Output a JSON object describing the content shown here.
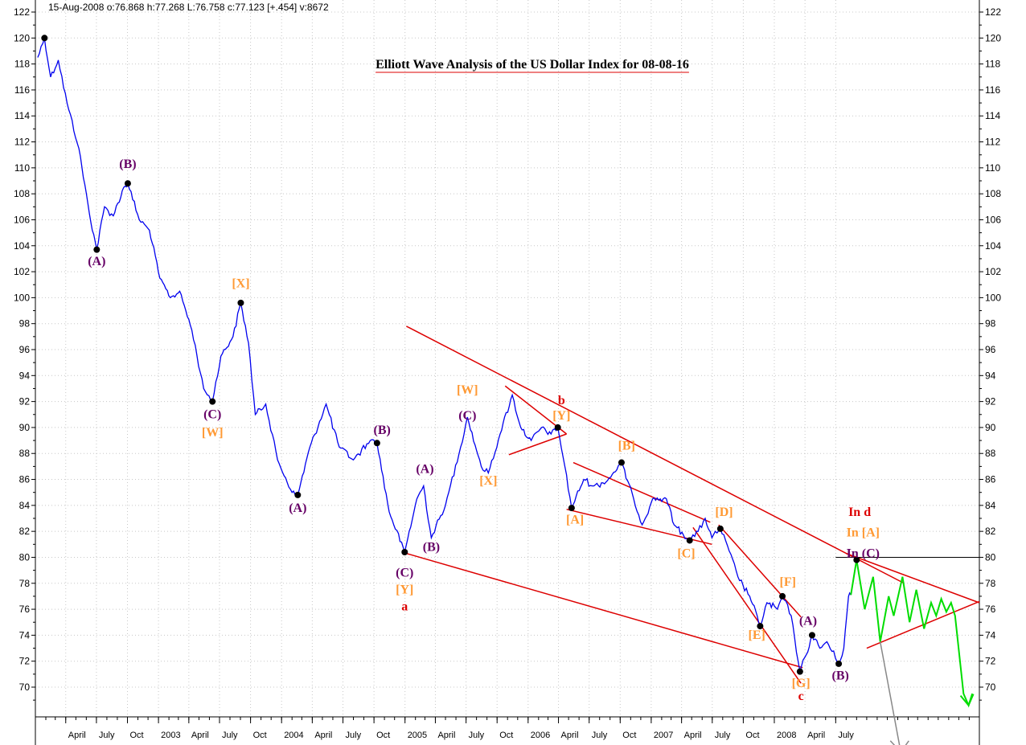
{
  "header": "15-Aug-2008  o:76.868 h:77.268 L:76.758 c:77.123 [+.454] v:8672",
  "colors": {
    "price": "#0000ee",
    "trendline": "#dd0000",
    "projection": "#00dd00",
    "alt_projection": "#888888",
    "purple_label": "#660066",
    "orange_label": "#ff9933",
    "red_label": "#dd0000",
    "grid": "#c8c8c8"
  },
  "chart_data": {
    "type": "line",
    "title": "Elliott Wave Analysis of the US Dollar Index for 08-08-16",
    "x_range": [
      "2002-01-01",
      "2009-08-31"
    ],
    "ylim": [
      68,
      122
    ],
    "y_ticks": [
      70,
      72,
      74,
      76,
      78,
      80,
      82,
      84,
      86,
      88,
      90,
      92,
      94,
      96,
      98,
      100,
      102,
      104,
      106,
      108,
      110,
      112,
      114,
      116,
      118,
      120,
      122
    ],
    "x_ticks": [
      {
        "date": "2002-04-01",
        "label": "April"
      },
      {
        "date": "2002-07-01",
        "label": "July"
      },
      {
        "date": "2002-10-01",
        "label": "Oct"
      },
      {
        "date": "2003-01-01",
        "label": "2003"
      },
      {
        "date": "2003-04-01",
        "label": "April"
      },
      {
        "date": "2003-07-01",
        "label": "July"
      },
      {
        "date": "2003-10-01",
        "label": "Oct"
      },
      {
        "date": "2004-01-01",
        "label": "2004"
      },
      {
        "date": "2004-04-01",
        "label": "April"
      },
      {
        "date": "2004-07-01",
        "label": "July"
      },
      {
        "date": "2004-10-01",
        "label": "Oct"
      },
      {
        "date": "2005-01-01",
        "label": "2005"
      },
      {
        "date": "2005-04-01",
        "label": "April"
      },
      {
        "date": "2005-07-01",
        "label": "July"
      },
      {
        "date": "2005-10-01",
        "label": "Oct"
      },
      {
        "date": "2006-01-01",
        "label": "2006"
      },
      {
        "date": "2006-04-01",
        "label": "April"
      },
      {
        "date": "2006-07-01",
        "label": "July"
      },
      {
        "date": "2006-10-01",
        "label": "Oct"
      },
      {
        "date": "2007-01-01",
        "label": "2007"
      },
      {
        "date": "2007-04-01",
        "label": "April"
      },
      {
        "date": "2007-07-01",
        "label": "July"
      },
      {
        "date": "2007-10-01",
        "label": "Oct"
      },
      {
        "date": "2008-01-01",
        "label": "2008"
      },
      {
        "date": "2008-04-01",
        "label": "April"
      },
      {
        "date": "2008-07-01",
        "label": "July"
      }
    ],
    "series": [
      {
        "role": "price",
        "points": [
          {
            "x": "2002-01-08",
            "y": 118.5
          },
          {
            "x": "2002-01-28",
            "y": 120.0
          },
          {
            "x": "2002-02-15",
            "y": 117.0
          },
          {
            "x": "2002-03-10",
            "y": 118.3
          },
          {
            "x": "2002-04-05",
            "y": 115.0
          },
          {
            "x": "2002-05-10",
            "y": 111.5
          },
          {
            "x": "2002-06-10",
            "y": 106.5
          },
          {
            "x": "2002-07-02",
            "y": 103.7
          },
          {
            "x": "2002-07-25",
            "y": 107.0
          },
          {
            "x": "2002-08-20",
            "y": 106.3
          },
          {
            "x": "2002-09-20",
            "y": 108.5
          },
          {
            "x": "2002-10-02",
            "y": 108.8
          },
          {
            "x": "2002-11-05",
            "y": 106.0
          },
          {
            "x": "2002-12-05",
            "y": 105.2
          },
          {
            "x": "2003-01-05",
            "y": 101.5
          },
          {
            "x": "2003-02-05",
            "y": 100.0
          },
          {
            "x": "2003-03-05",
            "y": 100.5
          },
          {
            "x": "2003-04-10",
            "y": 97.5
          },
          {
            "x": "2003-05-15",
            "y": 93.0
          },
          {
            "x": "2003-06-10",
            "y": 92.0
          },
          {
            "x": "2003-07-05",
            "y": 95.5
          },
          {
            "x": "2003-08-10",
            "y": 97.0
          },
          {
            "x": "2003-09-02",
            "y": 99.6
          },
          {
            "x": "2003-09-25",
            "y": 96.5
          },
          {
            "x": "2003-10-15",
            "y": 91.0
          },
          {
            "x": "2003-11-15",
            "y": 91.8
          },
          {
            "x": "2003-12-20",
            "y": 87.5
          },
          {
            "x": "2004-02-01",
            "y": 85.0
          },
          {
            "x": "2004-02-18",
            "y": 84.8
          },
          {
            "x": "2004-03-25",
            "y": 88.5
          },
          {
            "x": "2004-05-12",
            "y": 91.8
          },
          {
            "x": "2004-06-20",
            "y": 88.5
          },
          {
            "x": "2004-08-01",
            "y": 87.5
          },
          {
            "x": "2004-09-20",
            "y": 89.0
          },
          {
            "x": "2004-10-10",
            "y": 88.8
          },
          {
            "x": "2004-11-15",
            "y": 83.5
          },
          {
            "x": "2004-12-31",
            "y": 80.4
          },
          {
            "x": "2005-02-05",
            "y": 84.5
          },
          {
            "x": "2005-02-25",
            "y": 85.5
          },
          {
            "x": "2005-03-20",
            "y": 81.5
          },
          {
            "x": "2005-05-01",
            "y": 84.0
          },
          {
            "x": "2005-06-15",
            "y": 88.5
          },
          {
            "x": "2005-07-05",
            "y": 90.8
          },
          {
            "x": "2005-08-15",
            "y": 87.0
          },
          {
            "x": "2005-09-05",
            "y": 86.5
          },
          {
            "x": "2005-10-10",
            "y": 89.5
          },
          {
            "x": "2005-11-15",
            "y": 92.5
          },
          {
            "x": "2005-12-10",
            "y": 90.0
          },
          {
            "x": "2006-01-10",
            "y": 89.0
          },
          {
            "x": "2006-02-10",
            "y": 90.0
          },
          {
            "x": "2006-03-10",
            "y": 89.5
          },
          {
            "x": "2006-03-30",
            "y": 90.0
          },
          {
            "x": "2006-04-20",
            "y": 87.0
          },
          {
            "x": "2006-05-10",
            "y": 83.8
          },
          {
            "x": "2006-06-15",
            "y": 86.0
          },
          {
            "x": "2006-07-15",
            "y": 85.5
          },
          {
            "x": "2006-08-20",
            "y": 85.8
          },
          {
            "x": "2006-10-05",
            "y": 87.3
          },
          {
            "x": "2006-11-10",
            "y": 84.5
          },
          {
            "x": "2006-12-05",
            "y": 82.5
          },
          {
            "x": "2007-01-05",
            "y": 84.5
          },
          {
            "x": "2007-02-15",
            "y": 84.5
          },
          {
            "x": "2007-03-10",
            "y": 82.5
          },
          {
            "x": "2007-04-25",
            "y": 81.3
          },
          {
            "x": "2007-05-20",
            "y": 82.0
          },
          {
            "x": "2007-06-10",
            "y": 83.0
          },
          {
            "x": "2007-06-30",
            "y": 81.5
          },
          {
            "x": "2007-07-25",
            "y": 82.2
          },
          {
            "x": "2007-08-20",
            "y": 80.5
          },
          {
            "x": "2007-09-15",
            "y": 78.5
          },
          {
            "x": "2007-10-20",
            "y": 77.0
          },
          {
            "x": "2007-11-20",
            "y": 74.7
          },
          {
            "x": "2007-12-10",
            "y": 76.5
          },
          {
            "x": "2008-01-10",
            "y": 76.0
          },
          {
            "x": "2008-01-25",
            "y": 77.0
          },
          {
            "x": "2008-02-20",
            "y": 75.5
          },
          {
            "x": "2008-03-17",
            "y": 71.2
          },
          {
            "x": "2008-04-05",
            "y": 72.5
          },
          {
            "x": "2008-04-22",
            "y": 74.0
          },
          {
            "x": "2008-05-15",
            "y": 73.0
          },
          {
            "x": "2008-06-05",
            "y": 73.5
          },
          {
            "x": "2008-07-10",
            "y": 71.8
          },
          {
            "x": "2008-07-25",
            "y": 73.0
          },
          {
            "x": "2008-08-08",
            "y": 77.0
          },
          {
            "x": "2008-08-15",
            "y": 77.1
          }
        ]
      },
      {
        "role": "projection",
        "points": [
          {
            "x": "2008-08-15",
            "y": 77.1
          },
          {
            "x": "2008-09-01",
            "y": 79.8
          },
          {
            "x": "2008-09-25",
            "y": 76.0
          },
          {
            "x": "2008-10-20",
            "y": 78.5
          },
          {
            "x": "2008-11-10",
            "y": 73.5
          },
          {
            "x": "2008-12-05",
            "y": 77.0
          },
          {
            "x": "2008-12-20",
            "y": 75.5
          },
          {
            "x": "2009-01-15",
            "y": 78.5
          },
          {
            "x": "2009-02-05",
            "y": 75.0
          },
          {
            "x": "2009-02-25",
            "y": 77.5
          },
          {
            "x": "2009-03-20",
            "y": 74.5
          },
          {
            "x": "2009-04-10",
            "y": 76.5
          },
          {
            "x": "2009-04-25",
            "y": 75.5
          },
          {
            "x": "2009-05-10",
            "y": 76.8
          },
          {
            "x": "2009-05-25",
            "y": 75.8
          },
          {
            "x": "2009-06-08",
            "y": 76.5
          },
          {
            "x": "2009-06-20",
            "y": 75.5
          },
          {
            "x": "2009-07-15",
            "y": 69.5
          },
          {
            "x": "2009-07-30",
            "y": 68.6
          },
          {
            "x": "2009-08-10",
            "y": 69.5
          }
        ]
      },
      {
        "role": "alt_projection",
        "points": [
          {
            "x": "2008-11-10",
            "y": 73.5
          },
          {
            "x": "2009-01-10",
            "y": 65.0
          }
        ]
      }
    ],
    "trendlines": [
      {
        "from": {
          "x": "2005-01-05",
          "y": 80.3
        },
        "to": {
          "x": "2008-03-25",
          "y": 71.5
        }
      },
      {
        "from": {
          "x": "2005-01-05",
          "y": 97.8
        },
        "to": {
          "x": "2009-01-20",
          "y": 78.0
        }
      },
      {
        "from": {
          "x": "2005-10-25",
          "y": 93.2
        },
        "to": {
          "x": "2006-04-25",
          "y": 89.5
        }
      },
      {
        "from": {
          "x": "2005-11-05",
          "y": 87.9
        },
        "to": {
          "x": "2006-04-25",
          "y": 89.5
        }
      },
      {
        "from": {
          "x": "2006-04-25",
          "y": 83.7
        },
        "to": {
          "x": "2007-06-30",
          "y": 81.0
        }
      },
      {
        "from": {
          "x": "2006-05-15",
          "y": 87.3
        },
        "to": {
          "x": "2007-06-25",
          "y": 82.7
        }
      },
      {
        "from": {
          "x": "2007-05-05",
          "y": 82.3
        },
        "to": {
          "x": "2008-03-20",
          "y": 70.3
        }
      },
      {
        "from": {
          "x": "2007-07-20",
          "y": 82.5
        },
        "to": {
          "x": "2008-03-20",
          "y": 75.4
        }
      },
      {
        "from": {
          "x": "2008-08-01",
          "y": 80.3
        },
        "to": {
          "x": "2009-08-31",
          "y": 76.5
        }
      },
      {
        "from": {
          "x": "2008-10-01",
          "y": 73.0
        },
        "to": {
          "x": "2009-08-31",
          "y": 76.6
        }
      }
    ],
    "hlines": [
      {
        "y": 80.0,
        "from": "2008-07-01",
        "to": "2009-08-31",
        "color": "#000000"
      }
    ],
    "pivots": [
      {
        "x": "2002-01-28",
        "y": 120.0
      },
      {
        "x": "2002-07-02",
        "y": 103.7
      },
      {
        "x": "2002-10-02",
        "y": 108.8
      },
      {
        "x": "2003-06-10",
        "y": 92.0
      },
      {
        "x": "2003-09-02",
        "y": 99.6
      },
      {
        "x": "2004-02-18",
        "y": 84.8
      },
      {
        "x": "2004-10-10",
        "y": 88.8
      },
      {
        "x": "2004-12-31",
        "y": 80.4
      },
      {
        "x": "2006-03-30",
        "y": 90.0
      },
      {
        "x": "2006-05-10",
        "y": 83.8
      },
      {
        "x": "2006-10-05",
        "y": 87.3
      },
      {
        "x": "2007-04-25",
        "y": 81.3
      },
      {
        "x": "2007-07-25",
        "y": 82.2
      },
      {
        "x": "2007-11-20",
        "y": 74.7
      },
      {
        "x": "2008-01-25",
        "y": 77.0
      },
      {
        "x": "2008-03-17",
        "y": 71.2
      },
      {
        "x": "2008-04-22",
        "y": 74.0
      },
      {
        "x": "2008-07-10",
        "y": 71.8
      },
      {
        "x": "2008-09-01",
        "y": 79.8
      }
    ],
    "wave_labels": [
      {
        "text": "(B)",
        "x": "2002-10-02",
        "y": 110.0,
        "c": "purple"
      },
      {
        "text": "(A)",
        "x": "2002-07-02",
        "y": 102.5,
        "c": "purple"
      },
      {
        "text": "[X]",
        "x": "2003-09-02",
        "y": 100.8,
        "c": "orange"
      },
      {
        "text": "(C)",
        "x": "2003-06-10",
        "y": 90.7,
        "c": "purple"
      },
      {
        "text": "[W]",
        "x": "2003-06-10",
        "y": 89.3,
        "c": "orange"
      },
      {
        "text": "(A)",
        "x": "2004-02-18",
        "y": 83.5,
        "c": "purple"
      },
      {
        "text": "(B)",
        "x": "2004-10-25",
        "y": 89.5,
        "c": "purple"
      },
      {
        "text": "(A)",
        "x": "2005-03-01",
        "y": 86.5,
        "c": "purple"
      },
      {
        "text": "(B)",
        "x": "2005-03-20",
        "y": 80.5,
        "c": "purple"
      },
      {
        "text": "(C)",
        "x": "2004-12-31",
        "y": 78.5,
        "c": "purple"
      },
      {
        "text": "[Y]",
        "x": "2004-12-31",
        "y": 77.2,
        "c": "orange"
      },
      {
        "text": "a",
        "x": "2004-12-31",
        "y": 75.9,
        "c": "red"
      },
      {
        "text": "[W]",
        "x": "2005-07-05",
        "y": 92.6,
        "c": "orange"
      },
      {
        "text": "(C)",
        "x": "2005-07-05",
        "y": 90.6,
        "c": "purple"
      },
      {
        "text": "[X]",
        "x": "2005-09-05",
        "y": 85.6,
        "c": "orange"
      },
      {
        "text": "b",
        "x": "2006-04-10",
        "y": 91.8,
        "c": "red"
      },
      {
        "text": "[Y]",
        "x": "2006-04-10",
        "y": 90.6,
        "c": "orange"
      },
      {
        "text": "[A]",
        "x": "2006-05-20",
        "y": 82.6,
        "c": "orange"
      },
      {
        "text": "[B]",
        "x": "2006-10-20",
        "y": 88.3,
        "c": "orange"
      },
      {
        "text": "[C]",
        "x": "2007-04-15",
        "y": 80.0,
        "c": "orange"
      },
      {
        "text": "[D]",
        "x": "2007-08-05",
        "y": 83.2,
        "c": "orange"
      },
      {
        "text": "[E]",
        "x": "2007-11-10",
        "y": 73.7,
        "c": "orange"
      },
      {
        "text": "[F]",
        "x": "2008-02-10",
        "y": 77.8,
        "c": "orange"
      },
      {
        "text": "(A)",
        "x": "2008-04-10",
        "y": 74.8,
        "c": "purple"
      },
      {
        "text": "[G]",
        "x": "2008-03-20",
        "y": 70.0,
        "c": "orange"
      },
      {
        "text": "c",
        "x": "2008-03-20",
        "y": 69.0,
        "c": "red"
      },
      {
        "text": "(B)",
        "x": "2008-07-15",
        "y": 70.6,
        "c": "purple"
      },
      {
        "text": "In d",
        "x": "2008-09-10",
        "y": 83.2,
        "c": "red"
      },
      {
        "text": "In [A]",
        "x": "2008-09-20",
        "y": 81.6,
        "c": "orange"
      },
      {
        "text": "In (C)",
        "x": "2008-09-20",
        "y": 80.0,
        "c": "purple"
      }
    ]
  }
}
